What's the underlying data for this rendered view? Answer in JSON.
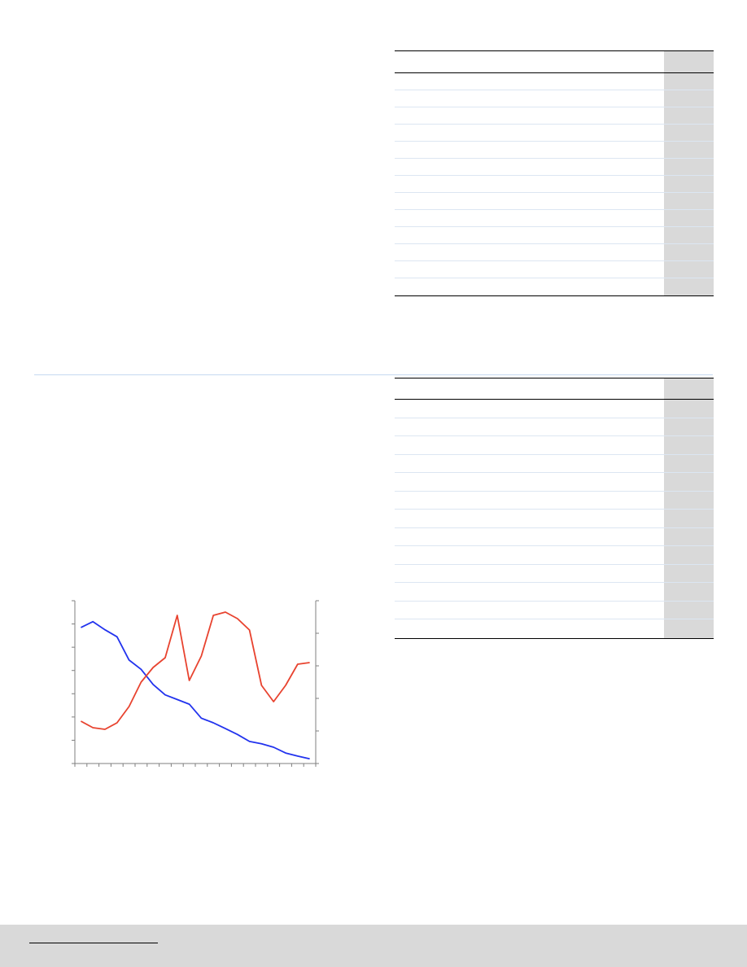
{
  "tables": [
    {
      "name": "table-1",
      "row_count": 13
    },
    {
      "name": "table-2",
      "row_count": 13
    }
  ],
  "chart_data": {
    "type": "line",
    "title": "",
    "xlabel": "",
    "ylabel": "",
    "x": [
      1,
      2,
      3,
      4,
      5,
      6,
      7,
      8,
      9,
      10,
      11,
      12,
      13,
      14,
      15,
      16,
      17,
      18,
      19,
      20
    ],
    "xlim": [
      0.5,
      20.5
    ],
    "left_axis": {
      "ylim": [
        0,
        7
      ],
      "ticks": 8
    },
    "right_axis": {
      "ylim": [
        0,
        5
      ],
      "ticks": 6
    },
    "series": [
      {
        "name": "",
        "axis": "left",
        "color": "#2233ee",
        "values": [
          5.85,
          6.1,
          5.75,
          5.45,
          4.45,
          4.05,
          3.4,
          2.95,
          2.75,
          2.55,
          1.95,
          1.75,
          1.5,
          1.25,
          0.95,
          0.85,
          0.7,
          0.45,
          0.32,
          0.2
        ]
      },
      {
        "name": "",
        "axis": "right",
        "color": "#e8432f",
        "values": [
          1.3,
          1.1,
          1.05,
          1.25,
          1.75,
          2.5,
          2.95,
          3.25,
          4.55,
          2.55,
          3.3,
          4.55,
          4.65,
          4.45,
          4.1,
          2.4,
          1.9,
          2.4,
          3.05,
          3.1
        ]
      }
    ]
  }
}
